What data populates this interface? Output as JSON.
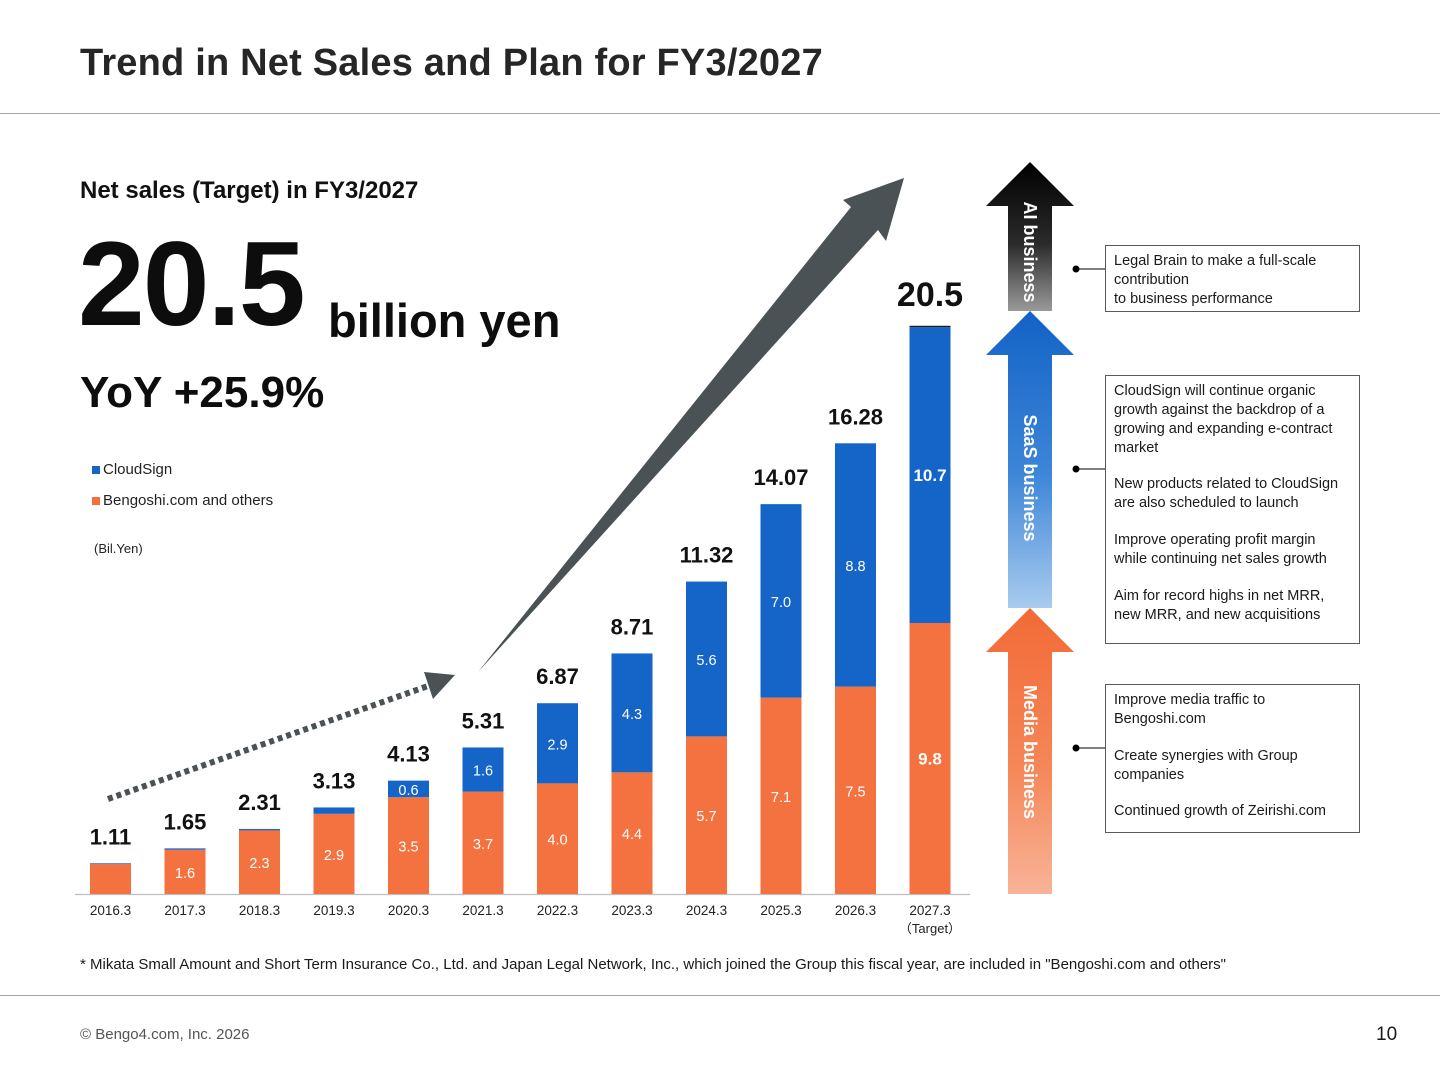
{
  "page": {
    "title": "Trend in Net Sales and Plan for FY3/2027",
    "subtitle": "Net sales (Target) in FY3/2027",
    "big_number": "20.5",
    "big_unit": "billion yen",
    "yoy": "YoY +25.9%",
    "footnote": "* Mikata Small Amount and Short Term Insurance Co., Ltd. and Japan Legal Network, Inc., which joined the Group this fiscal year, are included in \"Bengoshi.com and others\"",
    "copyright": "© Bengo4.com, Inc. 2026",
    "page_number": "10"
  },
  "legend": {
    "cloudsign": "CloudSign",
    "bengoshi": "Bengoshi.com and others",
    "unit": "(Bil.Yen)"
  },
  "colors": {
    "cloudsign": "#1565c8",
    "bengoshi": "#f4723f",
    "ai": "#1a1a1a",
    "trend_arrow": "#4a5256"
  },
  "chart_data": {
    "type": "bar",
    "stacked": true,
    "categories": [
      "2016.3",
      "2017.3",
      "2018.3",
      "2019.3",
      "2020.3",
      "2021.3",
      "2022.3",
      "2023.3",
      "2024.3",
      "2025.3",
      "2026.3",
      "2027.3"
    ],
    "category_sublabels": [
      "",
      "",
      "",
      "",
      "",
      "",
      "",
      "",
      "",
      "",
      "",
      "（Target）"
    ],
    "totals": [
      "1.11",
      "1.65",
      "2.31",
      "3.13",
      "4.13",
      "5.31",
      "6.87",
      "8.71",
      "11.32",
      "14.07",
      "16.28",
      "20.5"
    ],
    "series": [
      {
        "name": "Bengoshi.com and others",
        "values": [
          1.08,
          1.6,
          2.3,
          2.9,
          3.5,
          3.7,
          4.0,
          4.4,
          5.7,
          7.1,
          7.5,
          9.8
        ],
        "labels": [
          "",
          "1.6",
          "2.3",
          "2.9",
          "3.5",
          "3.7",
          "4.0",
          "4.4",
          "5.7",
          "7.1",
          "7.5",
          "9.8"
        ]
      },
      {
        "name": "CloudSign",
        "values": [
          0.03,
          0.05,
          0.05,
          0.23,
          0.6,
          1.6,
          2.9,
          4.3,
          5.6,
          7.0,
          8.8,
          10.7
        ],
        "labels": [
          "",
          "",
          "",
          "",
          "0.6",
          "1.6",
          "2.9",
          "4.3",
          "5.6",
          "7.0",
          "8.8",
          "10.7"
        ]
      },
      {
        "name": "AI business",
        "values": [
          0,
          0,
          0,
          0,
          0,
          0,
          0,
          0,
          0,
          0,
          0,
          0.05
        ],
        "labels": [
          "",
          "",
          "",
          "",
          "",
          "",
          "",
          "",
          "",
          "",
          "",
          ""
        ]
      }
    ],
    "ylim": [
      0,
      21
    ],
    "grid": false,
    "legend_position": "top-left"
  },
  "segments": [
    {
      "name": "AI business",
      "description_lines": [
        [
          "Legal Brain to make a full-scale contribution",
          "to business performance"
        ]
      ]
    },
    {
      "name": "SaaS business",
      "description_lines": [
        [
          "CloudSign will continue organic growth against the backdrop of a growing and expanding e-contract market"
        ],
        [
          "New products related to CloudSign are also scheduled to launch"
        ],
        [
          "Improve operating profit margin while continuing net sales growth"
        ],
        [
          "Aim for record highs in net MRR, new MRR, and new acquisitions"
        ]
      ]
    },
    {
      "name": "Media business",
      "description_lines": [
        [
          "Improve media traffic to Bengoshi.com"
        ],
        [
          "Create synergies with Group companies"
        ],
        [
          "Continued growth of Zeirishi.com"
        ]
      ]
    }
  ]
}
